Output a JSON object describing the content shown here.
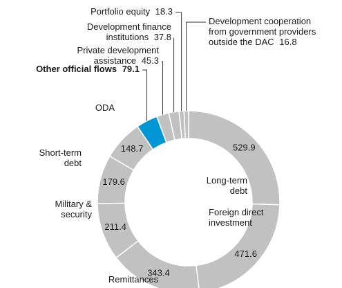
{
  "chart_data": {
    "type": "donut",
    "categories": [
      "Long-term debt",
      "Foreign direct investment",
      "Remittances",
      "Military & security",
      "Short-term debt",
      "ODA",
      "Other official flows",
      "Private development assistance",
      "Development finance institutions",
      "Portfolio equity",
      "Development cooperation from government providers outside the DAC"
    ],
    "values": [
      529.9,
      471.6,
      343.4,
      211.4,
      179.6,
      148.7,
      79.1,
      45.3,
      37.8,
      18.3,
      16.8
    ],
    "colors": [
      "#c1c1c1",
      "#c1c1c1",
      "#c1c1c1",
      "#c1c1c1",
      "#c1c1c1",
      "#c1c1c1",
      "#0097d4",
      "#c1c1c1",
      "#c1c1c1",
      "#c1c1c1",
      "#c1c1c1"
    ]
  }
}
